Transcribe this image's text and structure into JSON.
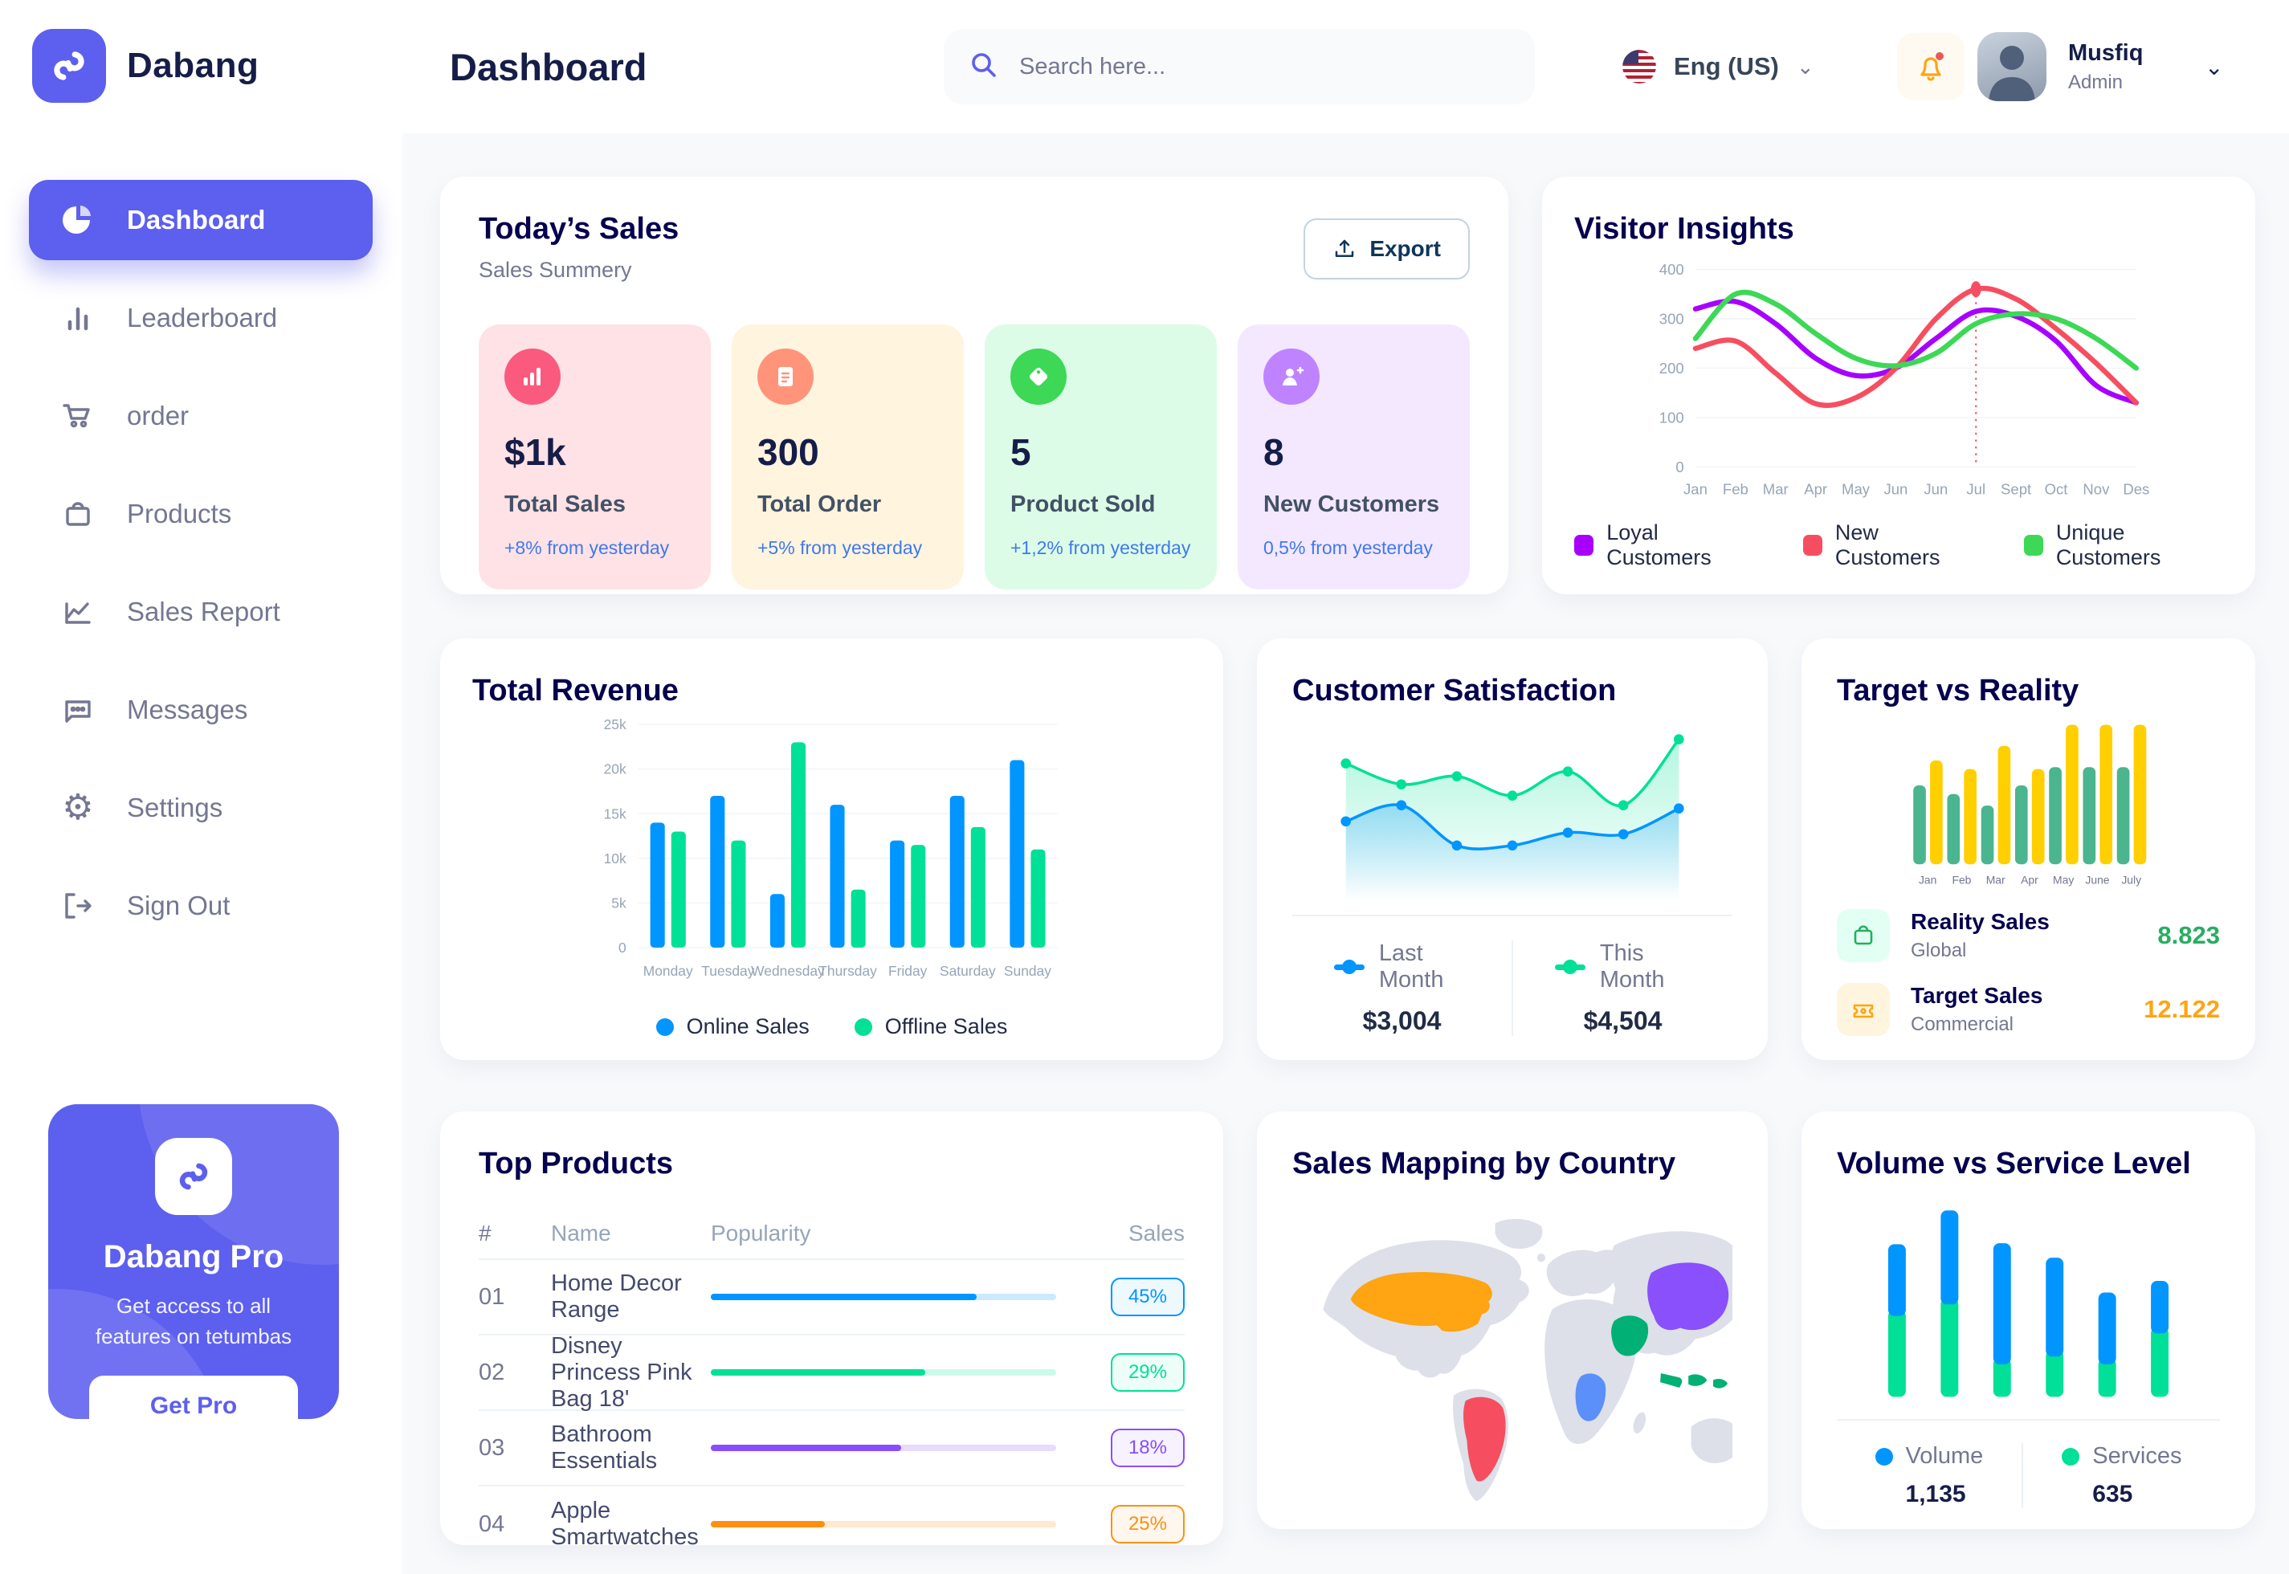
{
  "app": {
    "brand": "Dabang"
  },
  "topbar": {
    "page_title": "Dashboard",
    "search_placeholder": "Search here...",
    "language": "Eng (US)",
    "user_name": "Musfiq",
    "user_role": "Admin"
  },
  "sidebar": {
    "items": [
      {
        "label": "Dashboard",
        "active": true
      },
      {
        "label": "Leaderboard"
      },
      {
        "label": "order"
      },
      {
        "label": "Products"
      },
      {
        "label": "Sales Report"
      },
      {
        "label": "Messages"
      },
      {
        "label": "Settings"
      },
      {
        "label": "Sign Out"
      }
    ],
    "pro": {
      "title": "Dabang Pro",
      "desc": "Get access to all features on tetumbas",
      "button": "Get Pro"
    }
  },
  "today_sales": {
    "title": "Today’s Sales",
    "subtitle": "Sales Summery",
    "export_label": "Export",
    "cards": [
      {
        "value": "$1k",
        "label": "Total Sales",
        "delta": "+8% from yesterday",
        "bg": "#FFE2E5",
        "icon_bg": "#FA5A7D",
        "icon": "bar-chart"
      },
      {
        "value": "300",
        "label": "Total Order",
        "delta": "+5% from yesterday",
        "bg": "#FFF4DE",
        "icon_bg": "#FF947A",
        "icon": "file"
      },
      {
        "value": "5",
        "label": "Product Sold",
        "delta": "+1,2% from yesterday",
        "bg": "#DCFCE7",
        "icon_bg": "#3CD856",
        "icon": "tag"
      },
      {
        "value": "8",
        "label": "New Customers",
        "delta": "0,5% from yesterday",
        "bg": "#F3E8FF",
        "icon_bg": "#BF83FF",
        "icon": "user-plus"
      }
    ]
  },
  "top_products": {
    "title": "Top Products",
    "headers": [
      "#",
      "Name",
      "Popularity",
      "Sales"
    ],
    "rows": [
      {
        "num": "01",
        "name": "Home Decor Range",
        "popularity": 77,
        "sales": "45%",
        "color": "#0095FF"
      },
      {
        "num": "02",
        "name": "Disney Princess Pink Bag 18'",
        "popularity": 62,
        "sales": "29%",
        "color": "#00E096"
      },
      {
        "num": "03",
        "name": "Bathroom Essentials",
        "popularity": 55,
        "sales": "18%",
        "color": "#884DFF"
      },
      {
        "num": "04",
        "name": "Apple Smartwatches",
        "popularity": 33,
        "sales": "25%",
        "color": "#FF8F0D"
      }
    ]
  },
  "sales_mapping": {
    "title": "Sales Mapping by Country",
    "land_color": "#DDE0E8",
    "colors": {
      "usa": "#FFA412",
      "brazil": "#F64E60",
      "congo": "#5B8FF9",
      "saudi": "#00B074",
      "china": "#8950FC",
      "indonesia": "#00B074"
    }
  },
  "chart_data": [
    {
      "id": "visitor_insights",
      "type": "line",
      "title": "Visitor Insights",
      "x": [
        "Jan",
        "Feb",
        "Mar",
        "Apr",
        "May",
        "Jun",
        "Jun",
        "Jul",
        "Sept",
        "Oct",
        "Nov",
        "Des"
      ],
      "ylim": [
        0,
        400
      ],
      "yticks": [
        0,
        100,
        200,
        300,
        400
      ],
      "grid": true,
      "legend_position": "bottom",
      "series": [
        {
          "name": "Loyal Customers",
          "color": "#A700FF",
          "values": [
            320,
            335,
            290,
            220,
            185,
            200,
            260,
            315,
            305,
            255,
            165,
            130
          ]
        },
        {
          "name": "New Customers",
          "color": "#F64E60",
          "values": [
            240,
            255,
            190,
            128,
            140,
            200,
            300,
            360,
            340,
            280,
            210,
            130
          ]
        },
        {
          "name": "Unique Customers",
          "color": "#3CD856",
          "values": [
            260,
            350,
            330,
            270,
            220,
            205,
            230,
            290,
            310,
            300,
            260,
            200
          ]
        }
      ],
      "marker": {
        "series": 1,
        "index": 7,
        "value": 360
      }
    },
    {
      "id": "total_revenue",
      "type": "bar",
      "title": "Total Revenue",
      "categories": [
        "Monday",
        "Tuesday",
        "Wednesday",
        "Thursday",
        "Friday",
        "Saturday",
        "Sunday"
      ],
      "ylim": [
        0,
        25
      ],
      "yticks": [
        0,
        5,
        10,
        15,
        20,
        25
      ],
      "ytick_labels": [
        "0",
        "5k",
        "10k",
        "15k",
        "20k",
        "25k"
      ],
      "grid": true,
      "legend_position": "bottom",
      "series": [
        {
          "name": "Online Sales",
          "color": "#0095FF",
          "values": [
            14,
            17,
            6,
            16,
            12,
            17,
            21
          ]
        },
        {
          "name": "Offline Sales",
          "color": "#00E096",
          "values": [
            13,
            12,
            23,
            6.5,
            11.5,
            13.5,
            11
          ]
        }
      ]
    },
    {
      "id": "customer_satisfaction",
      "type": "area",
      "title": "Customer Satisfaction",
      "x": [
        1,
        2,
        3,
        4,
        5,
        6,
        7
      ],
      "ylim": [
        0,
        100
      ],
      "legend_position": "bottom",
      "series": [
        {
          "name": "This Month",
          "color": "#00E096",
          "total": "$4,504",
          "values": [
            78,
            65,
            70,
            58,
            73,
            52,
            93
          ]
        },
        {
          "name": "Last Month",
          "color": "#0095FF",
          "total": "$3,004",
          "values": [
            42,
            52,
            27,
            27,
            35,
            34,
            50
          ]
        }
      ]
    },
    {
      "id": "target_reality",
      "type": "bar",
      "title": "Target vs Reality",
      "categories": [
        "Jan",
        "Feb",
        "Mar",
        "Apr",
        "May",
        "June",
        "July"
      ],
      "ylim": [
        0,
        15
      ],
      "grid": false,
      "legend_position": "bottom",
      "series": [
        {
          "name": "Reality Sales",
          "subtitle": "Global",
          "color": "#4AB58E",
          "value_color": "#27AE60",
          "total": "8.823",
          "values": [
            8.2,
            7.3,
            6.1,
            8.2,
            10.1,
            10.1,
            10.1
          ]
        },
        {
          "name": "Target Sales",
          "subtitle": "Commercial",
          "color": "#FFCF00",
          "value_color": "#FFA412",
          "total": "12.122",
          "values": [
            10.8,
            9.9,
            12.3,
            9.9,
            14.5,
            14.5,
            14.5
          ]
        }
      ]
    },
    {
      "id": "volume_service",
      "type": "bar",
      "stacked": true,
      "title": "Volume vs Service Level",
      "categories": [
        "1",
        "2",
        "3",
        "4",
        "5",
        "6"
      ],
      "ylim": [
        0,
        1000
      ],
      "legend_position": "bottom",
      "series": [
        {
          "name": "Services",
          "color": "#00E096",
          "total": "635",
          "values": [
            450,
            510,
            200,
            240,
            200,
            360
          ]
        },
        {
          "name": "Volume",
          "color": "#0095FF",
          "total": "1,135",
          "values": [
            340,
            455,
            595,
            480,
            340,
            240
          ]
        }
      ]
    }
  ]
}
